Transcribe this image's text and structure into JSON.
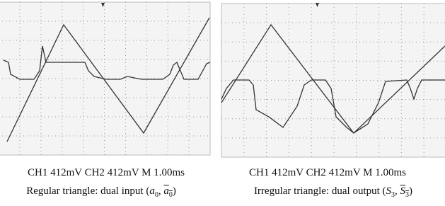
{
  "panels": [
    {
      "settings": "CH1 412mV CH2 412mV M 1.00ms",
      "caption": {
        "prefix": "Regular triangle: dual input",
        "open": "(",
        "var": "a",
        "sub": "0",
        "sep": ", ",
        "close": ")"
      }
    },
    {
      "settings": "CH1 412mV CH2 412mV M 1.00ms",
      "caption": {
        "prefix": "Irregular triangle: dual output",
        "open": "(",
        "var": "S",
        "sub": "3",
        "sep": ", ",
        "close": ")"
      }
    }
  ]
}
